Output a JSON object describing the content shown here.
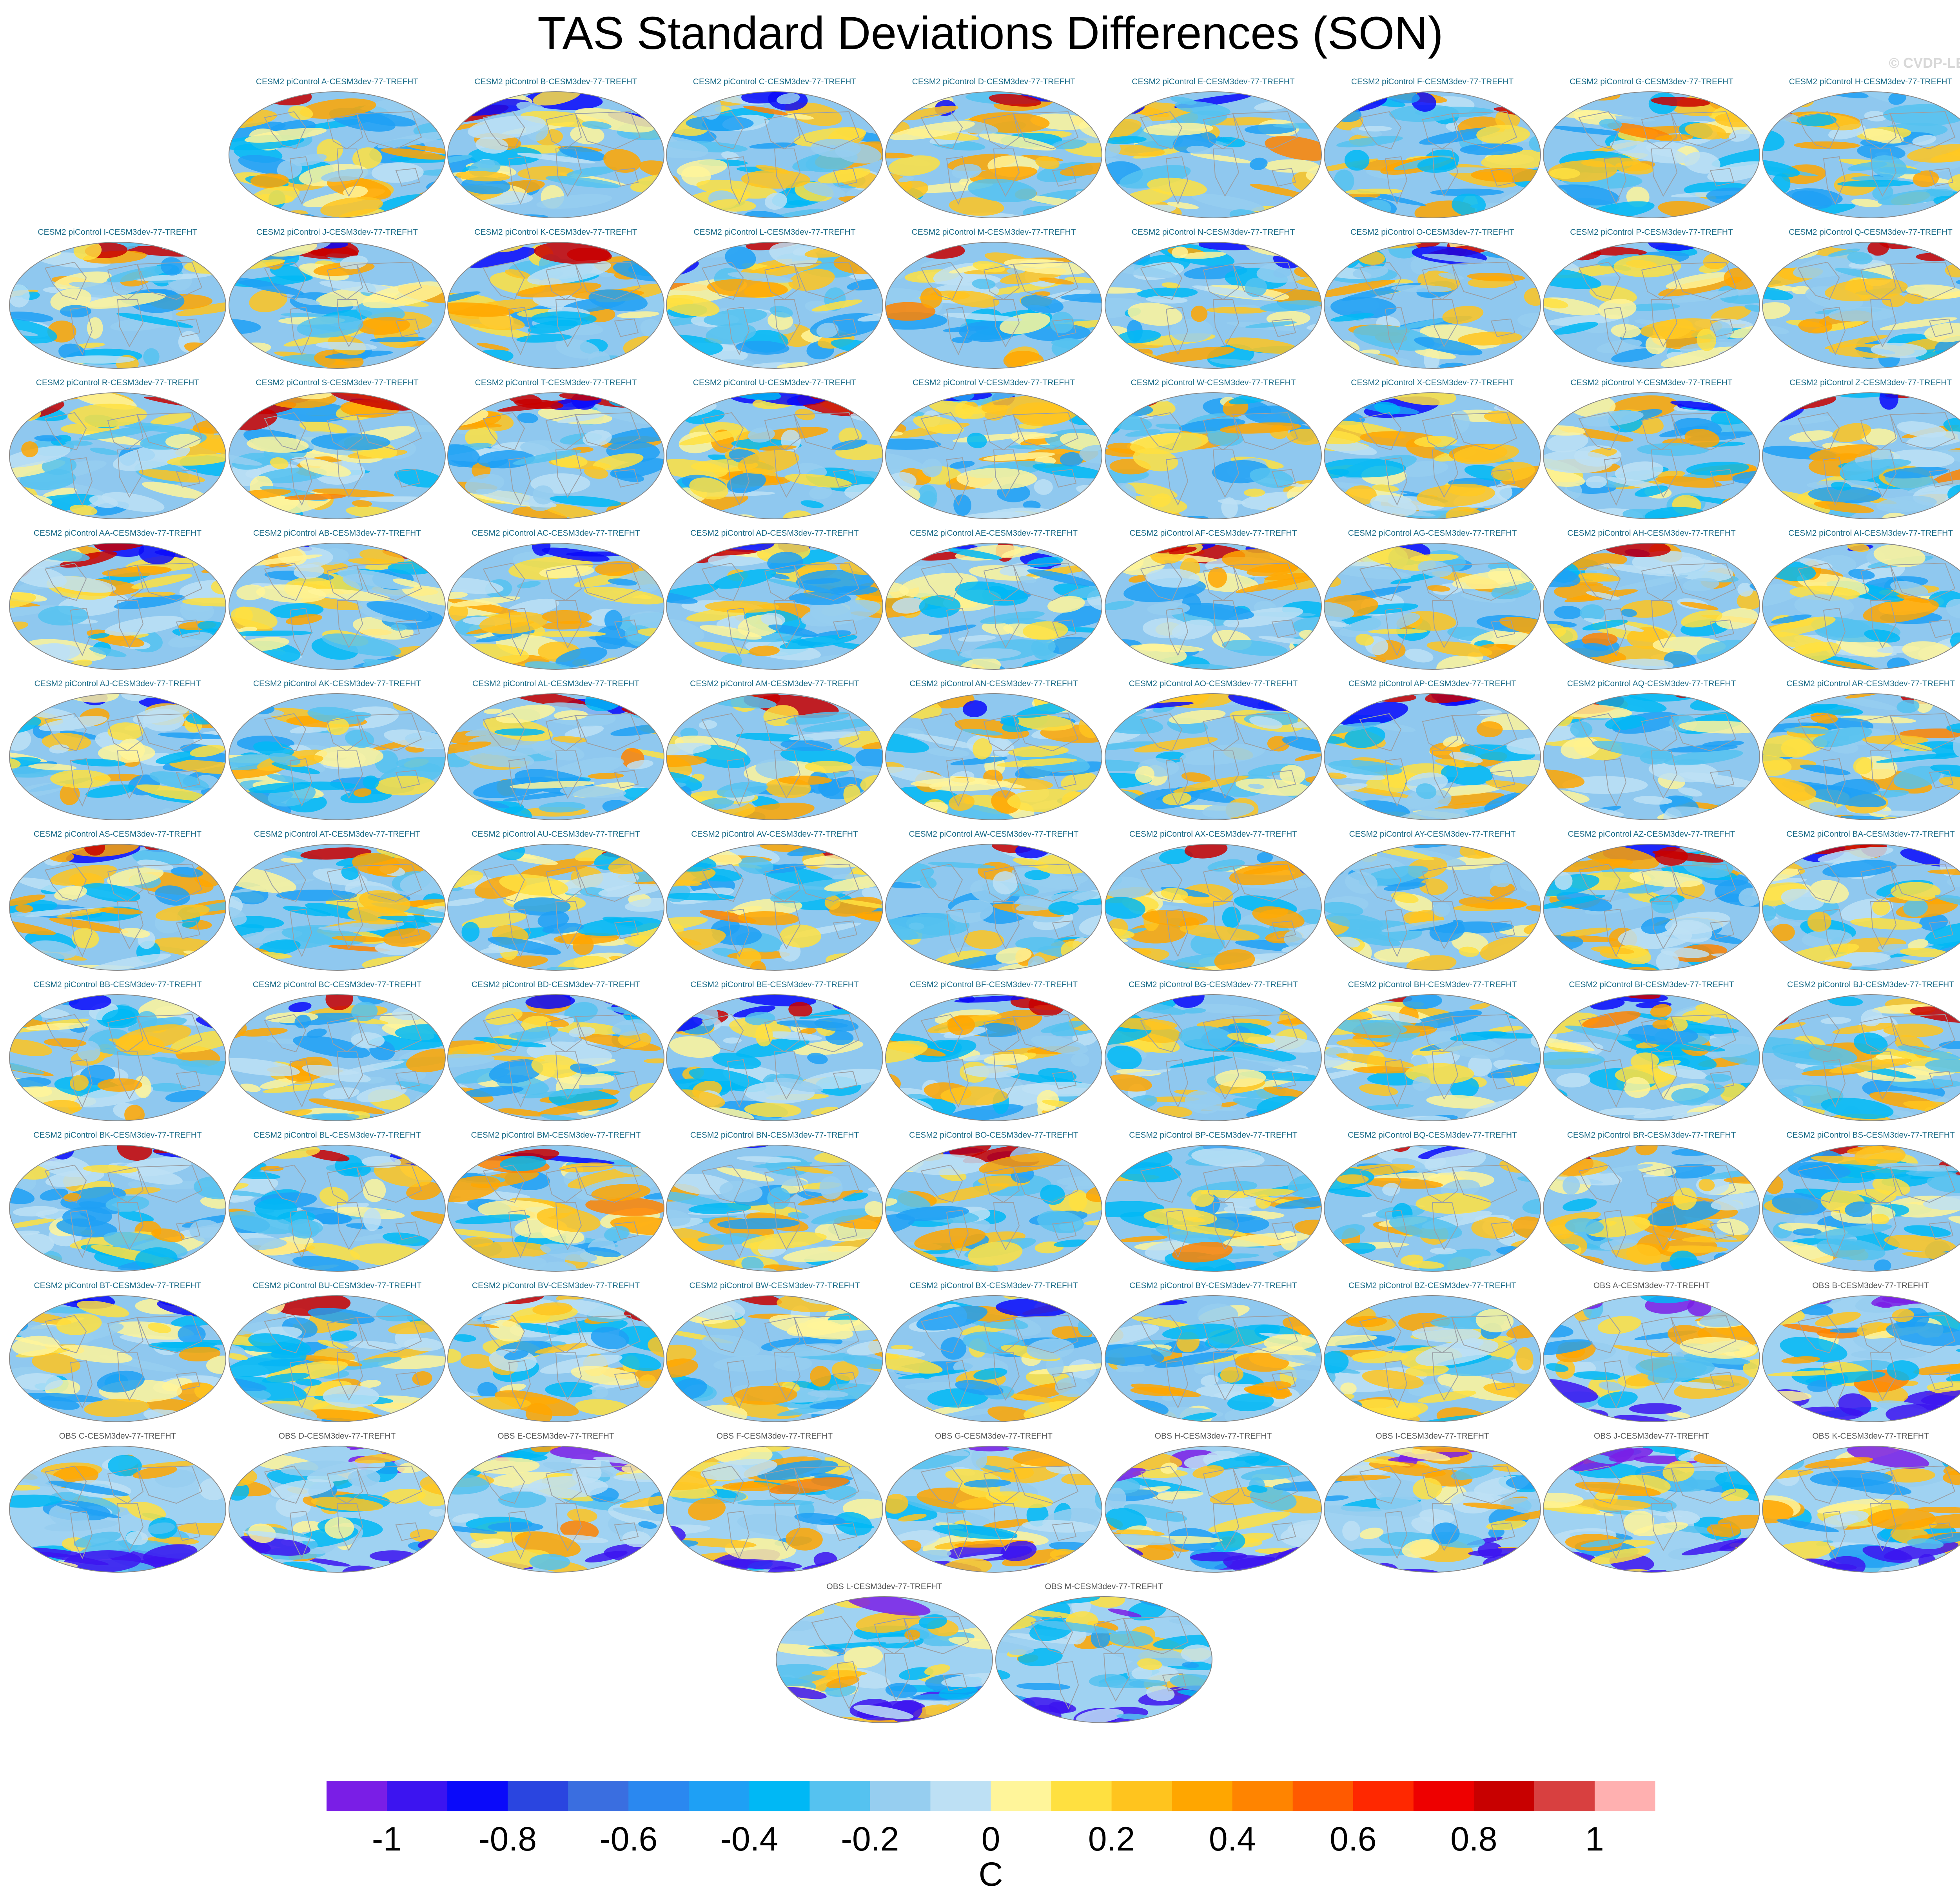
{
  "title": "TAS Standard Deviations Differences (SON)",
  "watermark": "© CVDP-LE",
  "chart_data": {
    "type": "heatmap",
    "title": "TAS Standard Deviations Differences (SON)",
    "projection": "global map panels",
    "panels": [
      "CESM2 piControl A-CESM3dev-77-TREFHT",
      "CESM2 piControl B-CESM3dev-77-TREFHT",
      "CESM2 piControl C-CESM3dev-77-TREFHT",
      "CESM2 piControl D-CESM3dev-77-TREFHT",
      "CESM2 piControl E-CESM3dev-77-TREFHT",
      "CESM2 piControl F-CESM3dev-77-TREFHT",
      "CESM2 piControl G-CESM3dev-77-TREFHT",
      "CESM2 piControl H-CESM3dev-77-TREFHT",
      "CESM2 piControl I-CESM3dev-77-TREFHT",
      "CESM2 piControl J-CESM3dev-77-TREFHT",
      "CESM2 piControl K-CESM3dev-77-TREFHT",
      "CESM2 piControl L-CESM3dev-77-TREFHT",
      "CESM2 piControl M-CESM3dev-77-TREFHT",
      "CESM2 piControl N-CESM3dev-77-TREFHT",
      "CESM2 piControl O-CESM3dev-77-TREFHT",
      "CESM2 piControl P-CESM3dev-77-TREFHT",
      "CESM2 piControl Q-CESM3dev-77-TREFHT",
      "CESM2 piControl R-CESM3dev-77-TREFHT",
      "CESM2 piControl S-CESM3dev-77-TREFHT",
      "CESM2 piControl T-CESM3dev-77-TREFHT",
      "CESM2 piControl U-CESM3dev-77-TREFHT",
      "CESM2 piControl V-CESM3dev-77-TREFHT",
      "CESM2 piControl W-CESM3dev-77-TREFHT",
      "CESM2 piControl X-CESM3dev-77-TREFHT",
      "CESM2 piControl Y-CESM3dev-77-TREFHT",
      "CESM2 piControl Z-CESM3dev-77-TREFHT",
      "CESM2 piControl AA-CESM3dev-77-TREFHT",
      "CESM2 piControl AB-CESM3dev-77-TREFHT",
      "CESM2 piControl AC-CESM3dev-77-TREFHT",
      "CESM2 piControl AD-CESM3dev-77-TREFHT",
      "CESM2 piControl AE-CESM3dev-77-TREFHT",
      "CESM2 piControl AF-CESM3dev-77-TREFHT",
      "CESM2 piControl AG-CESM3dev-77-TREFHT",
      "CESM2 piControl AH-CESM3dev-77-TREFHT",
      "CESM2 piControl AI-CESM3dev-77-TREFHT",
      "CESM2 piControl AJ-CESM3dev-77-TREFHT",
      "CESM2 piControl AK-CESM3dev-77-TREFHT",
      "CESM2 piControl AL-CESM3dev-77-TREFHT",
      "CESM2 piControl AM-CESM3dev-77-TREFHT",
      "CESM2 piControl AN-CESM3dev-77-TREFHT",
      "CESM2 piControl AO-CESM3dev-77-TREFHT",
      "CESM2 piControl AP-CESM3dev-77-TREFHT",
      "CESM2 piControl AQ-CESM3dev-77-TREFHT",
      "CESM2 piControl AR-CESM3dev-77-TREFHT",
      "CESM2 piControl AS-CESM3dev-77-TREFHT",
      "CESM2 piControl AT-CESM3dev-77-TREFHT",
      "CESM2 piControl AU-CESM3dev-77-TREFHT",
      "CESM2 piControl AV-CESM3dev-77-TREFHT",
      "CESM2 piControl AW-CESM3dev-77-TREFHT",
      "CESM2 piControl AX-CESM3dev-77-TREFHT",
      "CESM2 piControl AY-CESM3dev-77-TREFHT",
      "CESM2 piControl AZ-CESM3dev-77-TREFHT",
      "CESM2 piControl BA-CESM3dev-77-TREFHT",
      "CESM2 piControl BB-CESM3dev-77-TREFHT",
      "CESM2 piControl BC-CESM3dev-77-TREFHT",
      "CESM2 piControl BD-CESM3dev-77-TREFHT",
      "CESM2 piControl BE-CESM3dev-77-TREFHT",
      "CESM2 piControl BF-CESM3dev-77-TREFHT",
      "CESM2 piControl BG-CESM3dev-77-TREFHT",
      "CESM2 piControl BH-CESM3dev-77-TREFHT",
      "CESM2 piControl BI-CESM3dev-77-TREFHT",
      "CESM2 piControl BJ-CESM3dev-77-TREFHT",
      "CESM2 piControl BK-CESM3dev-77-TREFHT",
      "CESM2 piControl BL-CESM3dev-77-TREFHT",
      "CESM2 piControl BM-CESM3dev-77-TREFHT",
      "CESM2 piControl BN-CESM3dev-77-TREFHT",
      "CESM2 piControl BO-CESM3dev-77-TREFHT",
      "CESM2 piControl BP-CESM3dev-77-TREFHT",
      "CESM2 piControl BQ-CESM3dev-77-TREFHT",
      "CESM2 piControl BR-CESM3dev-77-TREFHT",
      "CESM2 piControl BS-CESM3dev-77-TREFHT",
      "CESM2 piControl BT-CESM3dev-77-TREFHT",
      "CESM2 piControl BU-CESM3dev-77-TREFHT",
      "CESM2 piControl BV-CESM3dev-77-TREFHT",
      "CESM2 piControl BW-CESM3dev-77-TREFHT",
      "CESM2 piControl BX-CESM3dev-77-TREFHT",
      "CESM2 piControl BY-CESM3dev-77-TREFHT",
      "CESM2 piControl BZ-CESM3dev-77-TREFHT",
      "OBS A-CESM3dev-77-TREFHT",
      "OBS B-CESM3dev-77-TREFHT",
      "OBS C-CESM3dev-77-TREFHT",
      "OBS D-CESM3dev-77-TREFHT",
      "OBS E-CESM3dev-77-TREFHT",
      "OBS F-CESM3dev-77-TREFHT",
      "OBS G-CESM3dev-77-TREFHT",
      "OBS H-CESM3dev-77-TREFHT",
      "OBS I-CESM3dev-77-TREFHT",
      "OBS J-CESM3dev-77-TREFHT",
      "OBS K-CESM3dev-77-TREFHT",
      "OBS L-CESM3dev-77-TREFHT",
      "OBS M-CESM3dev-77-TREFHT"
    ],
    "colorbar": {
      "label": "C",
      "range": [
        -1.1,
        1.1
      ],
      "step": 0.1,
      "tick_values": [
        -1,
        -0.8,
        -0.6,
        -0.4,
        -0.2,
        0,
        0.2,
        0.4,
        0.6,
        0.8,
        1
      ],
      "tick_labels": [
        "-1",
        "-0.8",
        "-0.6",
        "-0.4",
        "-0.2",
        "0",
        "0.2",
        "0.4",
        "0.6",
        "0.8",
        "1"
      ],
      "colors": [
        "#7a1ee6",
        "#3c14f0",
        "#0a0afa",
        "#2a45e0",
        "#3a6ee0",
        "#2a88f0",
        "#1ea0f5",
        "#00b8f5",
        "#55c2f0",
        "#96cef0",
        "#bde0f4",
        "#fff59a",
        "#ffe040",
        "#ffc41e",
        "#ffa600",
        "#ff8400",
        "#ff5a00",
        "#ff2800",
        "#ee0000",
        "#c80000",
        "#d84040",
        "#ffb0b0"
      ]
    }
  }
}
